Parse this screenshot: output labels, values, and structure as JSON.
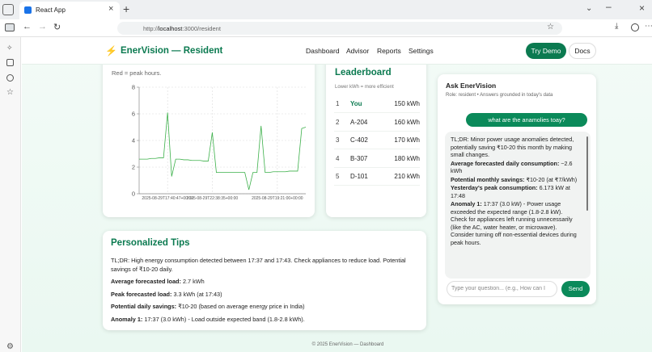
{
  "browser": {
    "tab_title": "React App",
    "url_prefix": "http://",
    "url_host": "localhost",
    "url_path": ":3000/resident"
  },
  "nav": {
    "brand": "EnerVision — Resident",
    "links": [
      "Dashboard",
      "Advisor",
      "Reports",
      "Settings"
    ],
    "primary_button": "Try Demo",
    "secondary_button": "Docs"
  },
  "chart_data": {
    "type": "line",
    "subtitle": "Red = peak hours.",
    "categories": [
      null,
      null,
      null,
      null,
      null,
      null,
      null,
      "2025-08-29T17:40:47+00:00",
      null,
      null,
      null,
      null,
      null,
      null,
      null,
      null,
      null,
      null,
      "2025-08-29T22:38:35+00:00",
      null,
      null,
      null,
      null,
      null,
      null,
      null,
      null,
      null,
      null,
      null,
      null,
      null,
      null,
      null,
      "2025-08-29T19:21:00+00:00",
      null,
      null,
      null,
      null,
      null,
      null,
      null
    ],
    "values": [
      2.6,
      2.6,
      2.6,
      2.65,
      2.65,
      2.7,
      2.7,
      6.1,
      1.3,
      2.6,
      2.6,
      2.55,
      2.55,
      2.5,
      2.5,
      2.5,
      2.45,
      2.45,
      4.6,
      1.6,
      1.6,
      1.6,
      1.6,
      1.6,
      1.6,
      1.6,
      1.6,
      0.3,
      1.6,
      1.6,
      5.1,
      1.6,
      1.6,
      1.65,
      1.65,
      1.65,
      1.65,
      1.7,
      1.7,
      1.7,
      4.9,
      5.0
    ],
    "color": "#3cb04a",
    "ylim": [
      0,
      8
    ],
    "yticks": [
      0,
      2,
      4,
      6,
      8
    ],
    "grid": true
  },
  "leaderboard": {
    "title": "Leaderboard",
    "subtitle": "Lower kWh = more efficient",
    "rows": [
      [
        "1",
        "You",
        "150 kWh"
      ],
      [
        "2",
        "A-204",
        "160 kWh"
      ],
      [
        "3",
        "C-402",
        "170 kWh"
      ],
      [
        "4",
        "B-307",
        "180 kWh"
      ],
      [
        "5",
        "D-101",
        "210 kWh"
      ]
    ]
  },
  "chat": {
    "title": "Ask EnerVision",
    "subtitle": "Role: resident • Answers grounded in today's data",
    "user_message": "what are the anamolies toay?",
    "reply_tldr": "TL;DR: Minor power usage anomalies detected, potentially saving ₹10-20 this month by making small changes.",
    "reply_items": [
      {
        "label": "Average forecasted daily consumption:",
        "text": "~2.6 kWh"
      },
      {
        "label": "Potential monthly savings:",
        "text": "₹10-20 (at ₹7/kWh)"
      },
      {
        "label": "Yesterday's peak consumption:",
        "text": "6.173 kW at 17:48"
      },
      {
        "label": "Anomaly 1:",
        "text": "17:37 (3.0 kW) - Power usage exceeded the expected range (1.8-2.8 kW). Check for appliances left running unnecessarily (like the AC, water heater, or microwave). Consider turning off non-essential devices during peak hours."
      }
    ],
    "input_placeholder": "Type your question... (e.g., How can I",
    "send": "Send"
  },
  "tips": {
    "title": "Personalized Tips",
    "tldr": "TL;DR: High energy consumption detected between 17:37 and 17:43. Check appliances to reduce load. Potential savings of ₹10-20 daily.",
    "items": [
      {
        "label": "Average forecasted load:",
        "text": "2.7 kWh"
      },
      {
        "label": "Peak forecasted load:",
        "text": "3.3 kWh (at 17:43)"
      },
      {
        "label": "Potential daily savings:",
        "text": "₹10-20 (based on average energy price in India)"
      },
      {
        "label": "Anomaly 1:",
        "text": "17:37 (3.0 kWh) - Load outside expected band (1.8-2.8 kWh)."
      }
    ]
  },
  "footer": "© 2025 EnerVision — Dashboard"
}
